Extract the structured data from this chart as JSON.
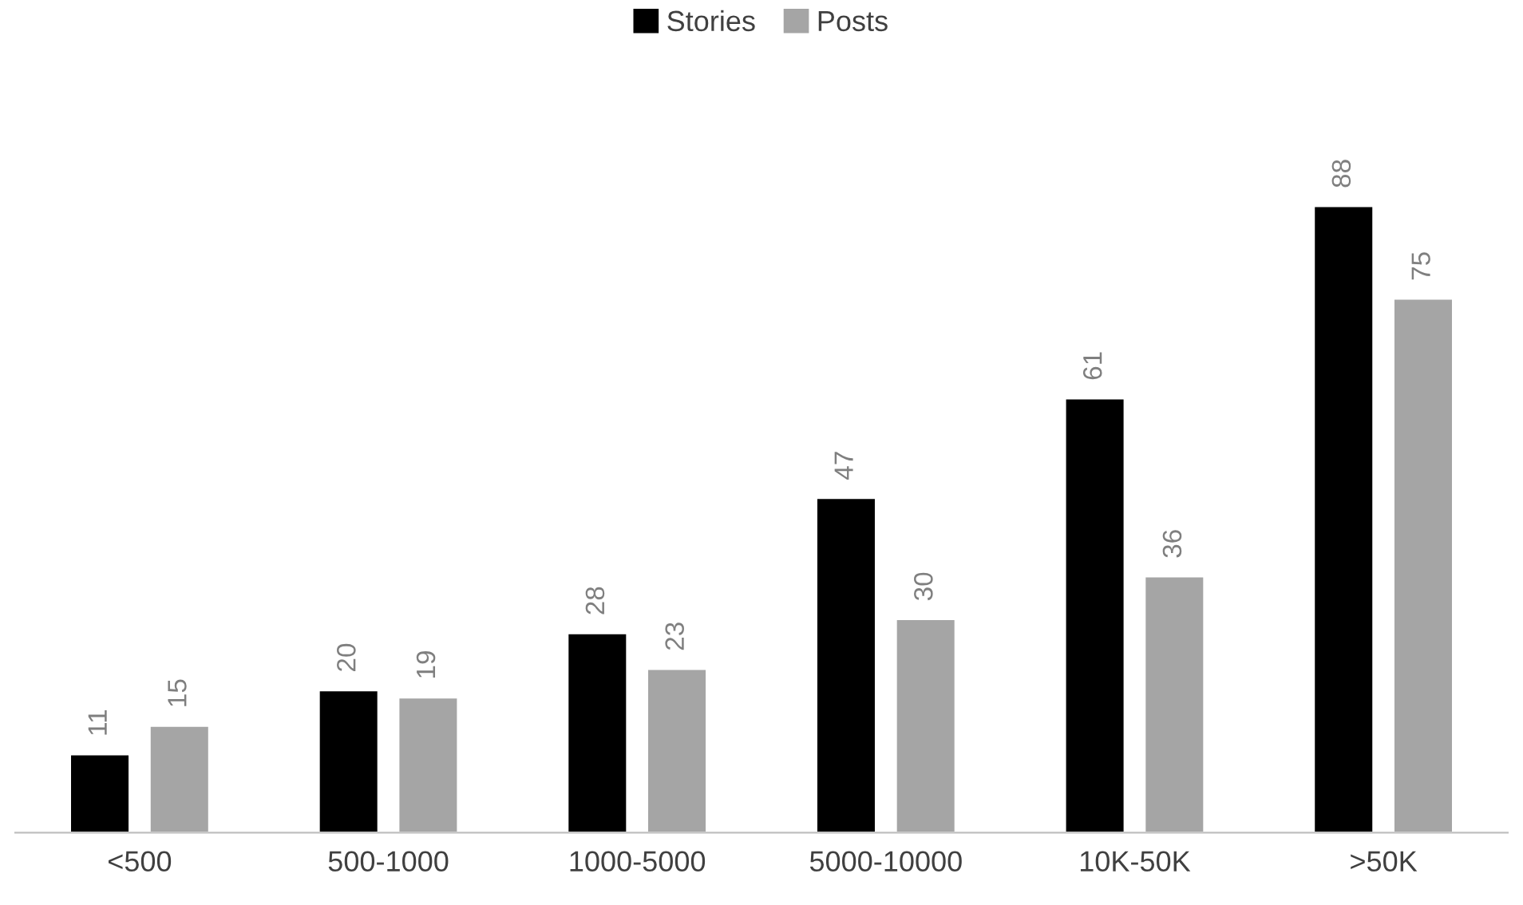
{
  "chart_data": {
    "type": "bar",
    "categories": [
      "<500",
      "500-1000",
      "1000-5000",
      "5000-10000",
      "10K-50K",
      ">50K"
    ],
    "series": [
      {
        "name": "Stories",
        "color": "#000000",
        "values": [
          11,
          20,
          28,
          47,
          61,
          88
        ]
      },
      {
        "name": "Posts",
        "color": "#a5a5a5",
        "values": [
          15,
          19,
          23,
          30,
          36,
          75
        ]
      }
    ],
    "data_labels": true,
    "grid": false,
    "legend": "top"
  }
}
